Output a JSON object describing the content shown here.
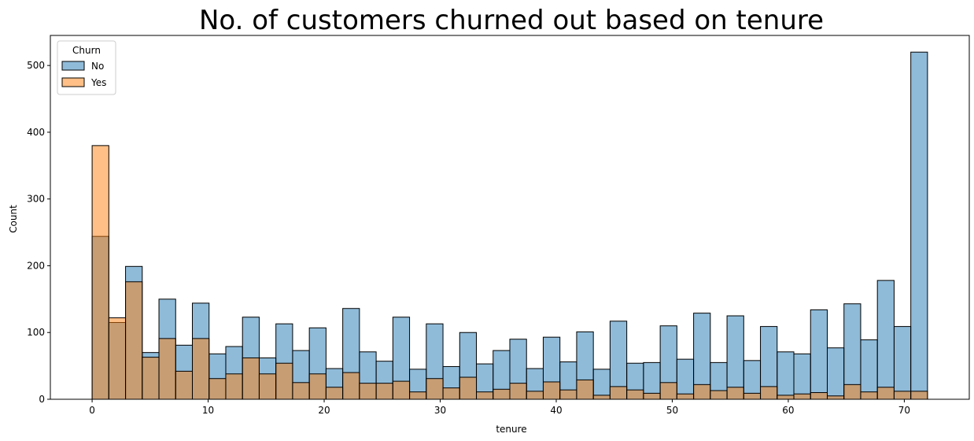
{
  "chart_data": {
    "type": "bar",
    "title": "No. of customers churned out based on tenure",
    "xlabel": "tenure",
    "ylabel": "Count",
    "xlim": [
      -3.6,
      75.6
    ],
    "ylim": [
      0,
      545
    ],
    "xticks": [
      0,
      10,
      20,
      30,
      40,
      50,
      60,
      70
    ],
    "yticks": [
      0,
      100,
      200,
      300,
      400,
      500
    ],
    "grid": false,
    "bin_width": 1.44,
    "x_start": 0,
    "legend": {
      "title": "Churn",
      "placement": "top-left"
    },
    "series": [
      {
        "name": "No",
        "color": "#1f77b4",
        "values": [
          244,
          115,
          199,
          70,
          150,
          81,
          144,
          68,
          79,
          123,
          62,
          113,
          73,
          107,
          46,
          136,
          71,
          57,
          123,
          45,
          113,
          49,
          100,
          53,
          73,
          90,
          46,
          93,
          56,
          101,
          45,
          117,
          54,
          55,
          110,
          60,
          129,
          55,
          125,
          58,
          109,
          71,
          68,
          134,
          77,
          143,
          89,
          178,
          109,
          520
        ]
      },
      {
        "name": "Yes",
        "color": "#ff7f0e",
        "values": [
          380,
          122,
          176,
          63,
          91,
          42,
          91,
          31,
          38,
          62,
          38,
          54,
          25,
          38,
          18,
          40,
          24,
          24,
          27,
          11,
          31,
          17,
          33,
          11,
          15,
          24,
          12,
          26,
          14,
          29,
          6,
          19,
          14,
          9,
          25,
          8,
          22,
          13,
          18,
          9,
          19,
          6,
          8,
          10,
          5,
          22,
          11,
          18,
          12,
          12
        ]
      }
    ]
  }
}
